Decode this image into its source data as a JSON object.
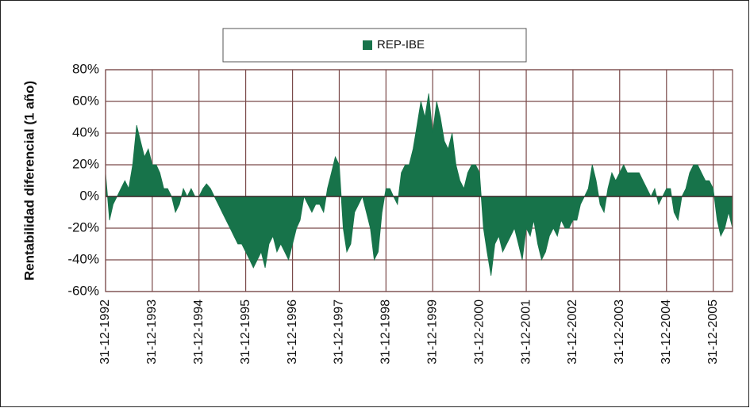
{
  "chart_data": {
    "type": "area",
    "y_label": "Rentabilidad diferencial (1 año)",
    "color": "#17734a",
    "grid": true,
    "legend": "top",
    "series": [
      {
        "name": "REP-IBE",
        "color": "#17734a",
        "values": [
          15,
          -15,
          -5,
          0,
          5,
          10,
          5,
          20,
          45,
          35,
          25,
          30,
          20,
          20,
          15,
          5,
          5,
          0,
          -10,
          -5,
          5,
          0,
          5,
          0,
          0,
          5,
          8,
          5,
          0,
          -5,
          -10,
          -15,
          -20,
          -25,
          -30,
          -30,
          -35,
          -40,
          -45,
          -40,
          -35,
          -45,
          -30,
          -25,
          -35,
          -30,
          -35,
          -40,
          -30,
          -20,
          -15,
          0,
          -5,
          -10,
          -5,
          -5,
          -10,
          5,
          15,
          25,
          20,
          -20,
          -35,
          -30,
          -10,
          -5,
          0,
          -10,
          -20,
          -40,
          -35,
          -10,
          5,
          5,
          0,
          -5,
          15,
          20,
          20,
          30,
          45,
          60,
          50,
          65,
          40,
          60,
          50,
          35,
          30,
          40,
          20,
          10,
          5,
          15,
          20,
          20,
          15,
          -20,
          -35,
          -50,
          -30,
          -25,
          -35,
          -30,
          -25,
          -20,
          -30,
          -40,
          -20,
          -25,
          -15,
          -30,
          -40,
          -35,
          -25,
          -20,
          -25,
          -15,
          -20,
          -20,
          -15,
          -15,
          -5,
          0,
          5,
          20,
          10,
          -5,
          -10,
          5,
          15,
          10,
          15,
          20,
          15,
          15,
          15,
          15,
          10,
          5,
          0,
          5,
          -5,
          0,
          5,
          5,
          -10,
          -15,
          0,
          5,
          15,
          20,
          20,
          15,
          10,
          10,
          5,
          -15,
          -25,
          -20,
          -10,
          -20
        ]
      }
    ],
    "x": [
      "1992-12-31",
      "1993-01-31",
      "1993-02-28",
      "1993-03-31",
      "1993-04-30",
      "1993-05-31",
      "1993-06-30",
      "1993-07-31",
      "1993-08-31",
      "1993-09-30",
      "1993-10-31",
      "1993-11-30",
      "1993-12-31",
      "1994-01-31",
      "1994-02-28",
      "1994-03-31",
      "1994-04-30",
      "1994-05-31",
      "1994-06-30",
      "1994-07-31",
      "1994-08-31",
      "1994-09-30",
      "1994-10-31",
      "1994-11-30",
      "1994-12-31",
      "1995-01-31",
      "1995-02-28",
      "1995-03-31",
      "1995-04-30",
      "1995-05-31",
      "1995-06-30",
      "1995-07-31",
      "1995-08-31",
      "1995-09-30",
      "1995-10-31",
      "1995-11-30",
      "1995-12-31",
      "1996-01-31",
      "1996-02-29",
      "1996-03-31",
      "1996-04-30",
      "1996-05-31",
      "1996-06-30",
      "1996-07-31",
      "1996-08-31",
      "1996-09-30",
      "1996-10-31",
      "1996-11-30",
      "1996-12-31",
      "1997-01-31",
      "1997-02-28",
      "1997-03-31",
      "1997-04-30",
      "1997-05-31",
      "1997-06-30",
      "1997-07-31",
      "1997-08-31",
      "1997-09-30",
      "1997-10-31",
      "1997-11-30",
      "1997-12-31",
      "1998-01-31",
      "1998-02-28",
      "1998-03-31",
      "1998-04-30",
      "1998-05-31",
      "1998-06-30",
      "1998-07-31",
      "1998-08-31",
      "1998-09-30",
      "1998-10-31",
      "1998-11-30",
      "1998-12-31",
      "1999-01-31",
      "1999-02-28",
      "1999-03-31",
      "1999-04-30",
      "1999-05-31",
      "1999-06-30",
      "1999-07-31",
      "1999-08-31",
      "1999-09-30",
      "1999-10-31",
      "1999-11-30",
      "1999-12-31",
      "2000-01-31",
      "2000-02-29",
      "2000-03-31",
      "2000-04-30",
      "2000-05-31",
      "2000-06-30",
      "2000-07-31",
      "2000-08-31",
      "2000-09-30",
      "2000-10-31",
      "2000-11-30",
      "2000-12-31",
      "2001-01-31",
      "2001-02-28",
      "2001-03-31",
      "2001-04-30",
      "2001-05-31",
      "2001-06-30",
      "2001-07-31",
      "2001-08-31",
      "2001-09-30",
      "2001-10-31",
      "2001-11-30",
      "2001-12-31",
      "2002-01-31",
      "2002-02-28",
      "2002-03-31",
      "2002-04-30",
      "2002-05-31",
      "2002-06-30",
      "2002-07-31",
      "2002-08-31",
      "2002-09-30",
      "2002-10-31",
      "2002-11-30",
      "2002-12-31",
      "2003-01-31",
      "2003-02-28",
      "2003-03-31",
      "2003-04-30",
      "2003-05-31",
      "2003-06-30",
      "2003-07-31",
      "2003-08-31",
      "2003-09-30",
      "2003-10-31",
      "2003-11-30",
      "2003-12-31",
      "2004-01-31",
      "2004-02-29",
      "2004-03-31",
      "2004-04-30",
      "2004-05-31",
      "2004-06-30",
      "2004-07-31",
      "2004-08-31",
      "2004-09-30",
      "2004-10-31",
      "2004-11-30",
      "2004-12-31",
      "2005-01-31",
      "2005-02-28",
      "2005-03-31",
      "2005-04-30",
      "2005-05-31",
      "2005-06-30",
      "2005-07-31",
      "2005-08-31",
      "2005-09-30",
      "2005-10-31",
      "2005-11-30",
      "2005-12-31",
      "2006-01-31",
      "2006-02-28",
      "2006-03-31",
      "2006-04-30",
      "2006-05-31"
    ],
    "xlim": [
      "1992-12-31",
      "2006-05-31"
    ],
    "xticks": [
      {
        "value": "1992-12-31",
        "label": "31-12-1992"
      },
      {
        "value": "1993-12-31",
        "label": "31-12-1993"
      },
      {
        "value": "1994-12-31",
        "label": "31-12-1994"
      },
      {
        "value": "1995-12-31",
        "label": "31-12-1995"
      },
      {
        "value": "1996-12-31",
        "label": "31-12-1996"
      },
      {
        "value": "1997-12-31",
        "label": "31-12-1997"
      },
      {
        "value": "1998-12-31",
        "label": "31-12-1998"
      },
      {
        "value": "1999-12-31",
        "label": "31-12-1999"
      },
      {
        "value": "2000-12-31",
        "label": "31-12-2000"
      },
      {
        "value": "2001-12-31",
        "label": "31-12-2001"
      },
      {
        "value": "2002-12-31",
        "label": "31-12-2002"
      },
      {
        "value": "2003-12-31",
        "label": "31-12-2003"
      },
      {
        "value": "2004-12-31",
        "label": "31-12-2004"
      },
      {
        "value": "2005-12-31",
        "label": "31-12-2005"
      }
    ],
    "ylim": [
      -60,
      80
    ],
    "yticks": [
      {
        "value": -60,
        "label": "-60%"
      },
      {
        "value": -40,
        "label": "-40%"
      },
      {
        "value": -20,
        "label": "-20%"
      },
      {
        "value": 0,
        "label": "0%"
      },
      {
        "value": 20,
        "label": "20%"
      },
      {
        "value": 40,
        "label": "40%"
      },
      {
        "value": 60,
        "label": "60%"
      },
      {
        "value": 80,
        "label": "80%"
      }
    ]
  }
}
